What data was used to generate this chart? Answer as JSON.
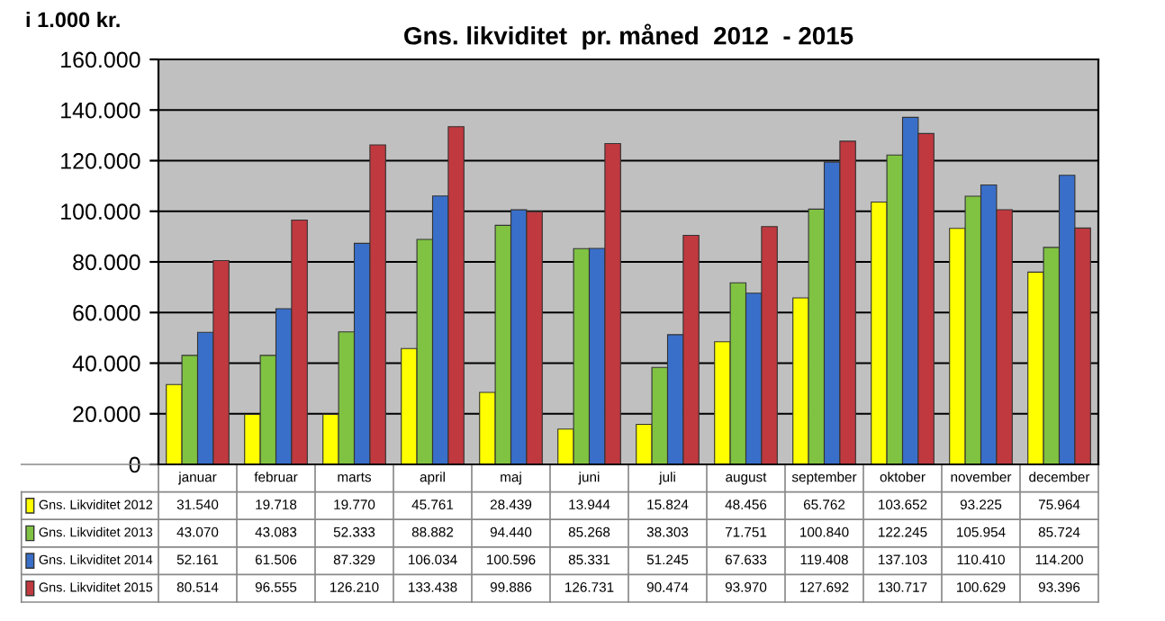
{
  "chart_data": {
    "type": "bar",
    "title": "Gns. likviditet  pr. måned  2012  - 2015",
    "ylabel": "i 1.000 kr.",
    "categories": [
      "januar",
      "februar",
      "marts",
      "april",
      "maj",
      "juni",
      "juli",
      "august",
      "september",
      "oktober",
      "november",
      "december"
    ],
    "series": [
      {
        "name": "Gns. Likviditet 2012",
        "color": "#ffff00",
        "values": [
          31540,
          19718,
          19770,
          45761,
          28439,
          13944,
          15824,
          48456,
          65762,
          103652,
          93225,
          75964
        ],
        "value_labels": [
          "31.540",
          "19.718",
          "19.770",
          "45.761",
          "28.439",
          "13.944",
          "15.824",
          "48.456",
          "65.762",
          "103.652",
          "93.225",
          "75.964"
        ]
      },
      {
        "name": "Gns. Likviditet 2013",
        "color": "#80c342",
        "values": [
          43070,
          43083,
          52333,
          88882,
          94440,
          85268,
          38303,
          71751,
          100840,
          122245,
          105954,
          85724
        ],
        "value_labels": [
          "43.070",
          "43.083",
          "52.333",
          "88.882",
          "94.440",
          "85.268",
          "38.303",
          "71.751",
          "100.840",
          "122.245",
          "105.954",
          "85.724"
        ]
      },
      {
        "name": "Gns. Likviditet 2014",
        "color": "#3a6fc9",
        "values": [
          52161,
          61506,
          87329,
          106034,
          100596,
          85331,
          51245,
          67633,
          119408,
          137103,
          110410,
          114200
        ],
        "value_labels": [
          "52.161",
          "61.506",
          "87.329",
          "106.034",
          "100.596",
          "85.331",
          "51.245",
          "67.633",
          "119.408",
          "137.103",
          "110.410",
          "114.200"
        ]
      },
      {
        "name": "Gns. Likviditet 2015",
        "color": "#c0393f",
        "values": [
          80514,
          96555,
          126210,
          133438,
          99886,
          126731,
          90474,
          93970,
          127692,
          130717,
          100629,
          93396
        ],
        "value_labels": [
          "80.514",
          "96.555",
          "126.210",
          "133.438",
          "99.886",
          "126.731",
          "90.474",
          "93.970",
          "127.692",
          "130.717",
          "100.629",
          "93.396"
        ]
      }
    ],
    "ylim": [
      0,
      160000
    ],
    "yticks": [
      {
        "value": 0,
        "label": "0"
      },
      {
        "value": 20000,
        "label": "20.000"
      },
      {
        "value": 40000,
        "label": "40.000"
      },
      {
        "value": 60000,
        "label": "60.000"
      },
      {
        "value": 80000,
        "label": "80.000"
      },
      {
        "value": 100000,
        "label": "100.000"
      },
      {
        "value": 120000,
        "label": "120.000"
      },
      {
        "value": 140000,
        "label": "140.000"
      },
      {
        "value": 160000,
        "label": "160.000"
      }
    ],
    "grid": "y",
    "legend": "bottom"
  }
}
